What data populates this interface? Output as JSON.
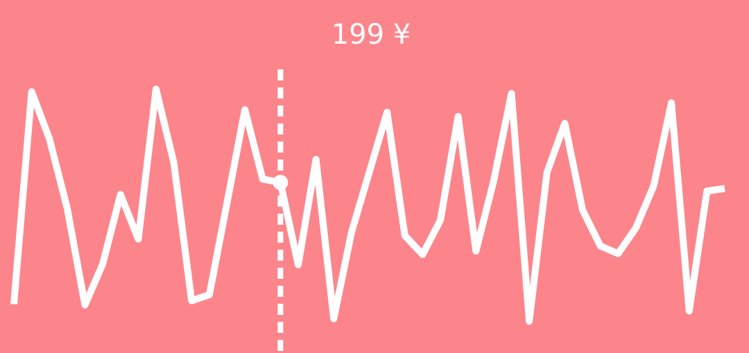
{
  "chart_data": {
    "type": "line",
    "x": [
      0,
      1,
      2,
      3,
      4,
      5,
      6,
      7,
      8,
      9,
      10,
      11,
      13,
      14,
      15,
      16,
      17,
      18,
      19,
      21,
      22,
      23,
      24,
      25,
      26,
      27,
      28,
      29,
      30,
      31,
      32,
      33,
      34,
      35,
      36,
      37,
      38,
      39,
      40
    ],
    "series": [
      {
        "color": "#ffffff",
        "values": [
          57,
          305,
          250,
          169,
          56,
          104,
          185,
          133,
          308,
          222,
          61,
          68,
          284,
          203,
          199,
          103,
          226,
          40,
          141,
          281,
          137,
          115,
          155,
          276,
          119,
          201,
          303,
          37,
          211,
          268,
          167,
          125,
          116,
          146,
          195,
          292,
          49,
          189,
          192
        ]
      }
    ],
    "xlim": [
      0,
      40
    ],
    "ylim": [
      0,
      412
    ],
    "highlight_index": 14,
    "highlight_label": "199 ¥",
    "background": "#fc858c"
  }
}
